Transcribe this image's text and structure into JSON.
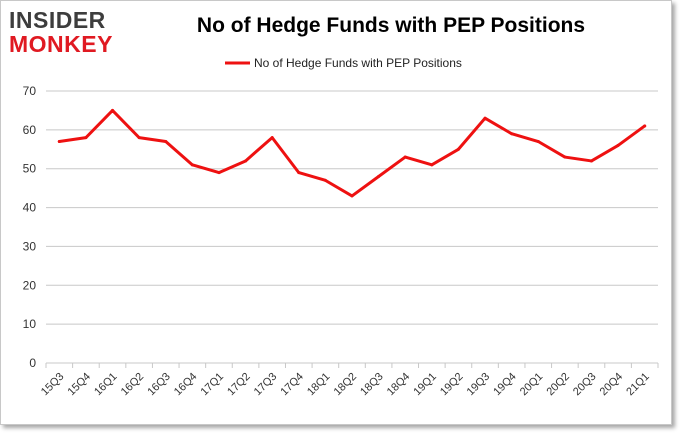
{
  "logo": {
    "line1": "INSIDER",
    "line2": "MONKEY"
  },
  "colors": {
    "series": "#ee1111",
    "grid": "#c8c8c8",
    "logo_accent": "#e01a22"
  },
  "chart_data": {
    "type": "line",
    "title": "No of Hedge Funds with PEP Positions",
    "xlabel": "",
    "ylabel": "",
    "categories": [
      "15Q3",
      "15Q4",
      "16Q1",
      "16Q2",
      "16Q3",
      "16Q4",
      "17Q1",
      "17Q2",
      "17Q3",
      "17Q4",
      "18Q1",
      "18Q2",
      "18Q3",
      "18Q4",
      "19Q1",
      "19Q2",
      "19Q3",
      "19Q4",
      "20Q1",
      "20Q2",
      "20Q3",
      "20Q4",
      "21Q1"
    ],
    "series": [
      {
        "name": "No of Hedge Funds with PEP Positions",
        "values": [
          57,
          58,
          65,
          58,
          57,
          51,
          49,
          52,
          58,
          49,
          47,
          43,
          48,
          53,
          51,
          55,
          63,
          59,
          57,
          53,
          52,
          56,
          61
        ]
      }
    ],
    "ylim": [
      0,
      70
    ],
    "yticks": [
      0,
      10,
      20,
      30,
      40,
      50,
      60,
      70
    ],
    "grid": true,
    "legend_position": "top-center"
  }
}
